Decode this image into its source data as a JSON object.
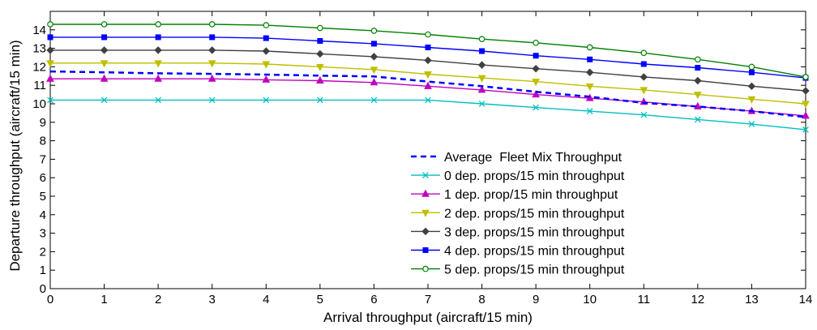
{
  "chart_data": {
    "type": "line",
    "title": "",
    "xlabel": "Arrival throughput (aircraft/15 min)",
    "ylabel": "Departure throughput (aircraft/15 min)",
    "xlim": [
      0,
      14
    ],
    "ylim": [
      0,
      15
    ],
    "x": [
      0,
      1,
      2,
      3,
      4,
      5,
      6,
      7,
      8,
      9,
      10,
      11,
      12,
      13,
      14
    ],
    "xticks": [
      0,
      1,
      2,
      3,
      4,
      5,
      6,
      7,
      8,
      9,
      10,
      11,
      12,
      13,
      14
    ],
    "yticks": [
      0,
      1,
      2,
      3,
      4,
      5,
      6,
      7,
      8,
      9,
      10,
      11,
      12,
      13,
      14
    ],
    "grid": false,
    "legend_position": "lower-right",
    "series": [
      {
        "name": "Average  Fleet Mix Throughput",
        "color": "#0000ff",
        "style": "dashed",
        "marker": "none",
        "values": [
          11.75,
          11.7,
          11.65,
          11.62,
          11.58,
          11.52,
          11.48,
          11.2,
          10.95,
          10.65,
          10.38,
          10.05,
          9.85,
          9.6,
          9.28
        ]
      },
      {
        "name": "0 dep. props/15 min throughput",
        "color": "#00bfbf",
        "style": "solid",
        "marker": "x",
        "values": [
          10.2,
          10.2,
          10.2,
          10.2,
          10.2,
          10.2,
          10.2,
          10.2,
          10.0,
          9.8,
          9.6,
          9.4,
          9.15,
          8.9,
          8.6
        ]
      },
      {
        "name": "1 dep. prop/15 min throughput",
        "color": "#bf00bf",
        "style": "solid",
        "marker": "triangle-up",
        "values": [
          11.35,
          11.35,
          11.35,
          11.35,
          11.3,
          11.25,
          11.15,
          10.95,
          10.75,
          10.5,
          10.3,
          10.1,
          9.85,
          9.6,
          9.35
        ]
      },
      {
        "name": "2 dep. props/15 min throughput",
        "color": "#bfbf00",
        "style": "solid",
        "marker": "triangle-down",
        "values": [
          12.2,
          12.2,
          12.2,
          12.2,
          12.15,
          12.0,
          11.85,
          11.6,
          11.4,
          11.2,
          10.95,
          10.75,
          10.5,
          10.25,
          10.0
        ]
      },
      {
        "name": "3 dep. props/15 min throughput",
        "color": "#404040",
        "style": "solid",
        "marker": "diamond",
        "values": [
          12.9,
          12.9,
          12.9,
          12.9,
          12.85,
          12.7,
          12.55,
          12.35,
          12.1,
          11.9,
          11.7,
          11.45,
          11.25,
          10.95,
          10.7
        ]
      },
      {
        "name": "4 dep. props/15 min throughput",
        "color": "#0000ff",
        "style": "solid",
        "marker": "square",
        "values": [
          13.6,
          13.6,
          13.6,
          13.6,
          13.55,
          13.4,
          13.25,
          13.05,
          12.85,
          12.6,
          12.4,
          12.15,
          11.95,
          11.7,
          11.4
        ]
      },
      {
        "name": "5 dep. props/15 min throughput",
        "color": "#008000",
        "style": "solid",
        "marker": "circle",
        "values": [
          14.3,
          14.3,
          14.3,
          14.3,
          14.25,
          14.1,
          13.95,
          13.75,
          13.5,
          13.3,
          13.05,
          12.75,
          12.4,
          12.0,
          11.45
        ]
      }
    ]
  }
}
